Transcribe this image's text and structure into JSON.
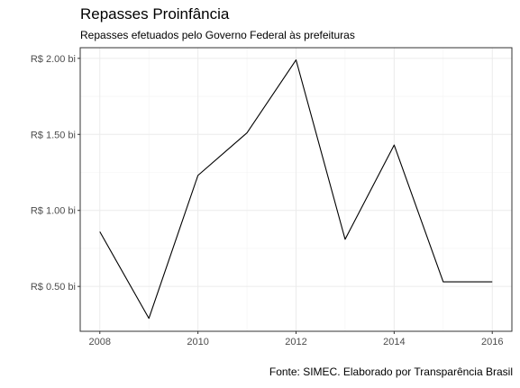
{
  "chart_data": {
    "type": "line",
    "title": "Repasses Proinfância",
    "subtitle": "Repasses efetuados pelo Governo Federal às prefeituras",
    "caption": "Fonte: SIMEC. Elaborado por Transparência Brasil",
    "xlabel": "",
    "ylabel": "",
    "x": [
      2008,
      2009,
      2010,
      2011,
      2012,
      2013,
      2014,
      2015,
      2016
    ],
    "series": [
      {
        "values": [
          0.86,
          0.29,
          1.23,
          1.51,
          1.99,
          0.81,
          1.43,
          0.53,
          0.53
        ]
      }
    ],
    "xticks": [
      2008,
      2010,
      2012,
      2014,
      2016
    ],
    "xtick_labels": [
      "2008",
      "2010",
      "2012",
      "2014",
      "2016"
    ],
    "yticks": [
      0.5,
      1.0,
      1.5,
      2.0
    ],
    "ytick_labels": [
      "R$ 0.50 bi",
      "R$ 1.00 bi",
      "R$ 1.50 bi",
      "R$ 2.00 bi"
    ],
    "xlim": [
      2007.6,
      2016.4
    ],
    "ylim": [
      0.205,
      2.07
    ],
    "grid": true,
    "line_color": "#000000",
    "grid_color": "#ebebeb",
    "axis_color": "#333333"
  }
}
